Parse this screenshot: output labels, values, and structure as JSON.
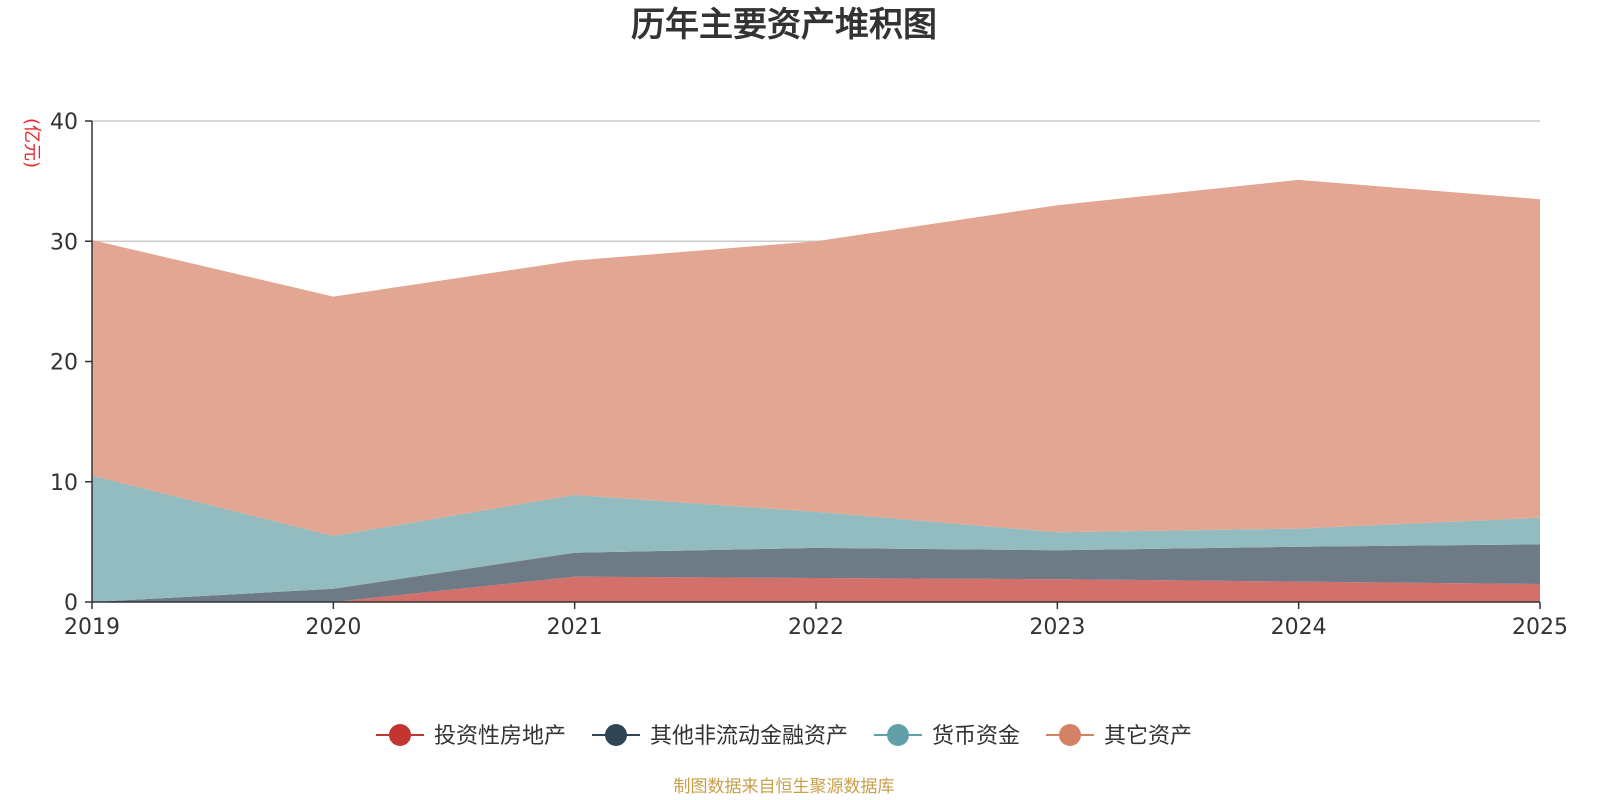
{
  "chart_data": {
    "type": "area",
    "stacked": true,
    "title": "历年主要资产堆积图",
    "ylabel": "(亿元)",
    "xlabel": "",
    "ylim": [
      0,
      40
    ],
    "yticks": [
      0,
      10,
      20,
      30,
      40
    ],
    "grid": true,
    "legend_position": "bottom-center",
    "x": [
      "2019",
      "2020",
      "2021",
      "2022",
      "2023",
      "2024",
      "2025"
    ],
    "series": [
      {
        "name": "投资性房地产",
        "values": [
          0.0,
          0.0,
          2.1,
          2.0,
          1.9,
          1.7,
          1.5
        ],
        "fill_color": "#d4706c",
        "legend_color": "#c23531"
      },
      {
        "name": "其他非流动金融资产",
        "values": [
          0.0,
          1.1,
          2.0,
          2.5,
          2.4,
          2.9,
          3.3
        ],
        "fill_color": "#6e7b86",
        "legend_color": "#2f4554"
      },
      {
        "name": "货币资金",
        "values": [
          10.5,
          4.4,
          4.8,
          3.0,
          1.5,
          1.5,
          2.2
        ],
        "fill_color": "#93bcc0",
        "legend_color": "#61a0a8"
      },
      {
        "name": "其它资产",
        "values": [
          19.6,
          19.9,
          19.5,
          22.5,
          27.2,
          29.0,
          26.5
        ],
        "fill_color": "#e2a692",
        "legend_color": "#d48265"
      }
    ],
    "source": "制图数据来自恒生聚源数据库"
  },
  "colors": {
    "axis": "#333333",
    "grid": "#cccccc"
  }
}
